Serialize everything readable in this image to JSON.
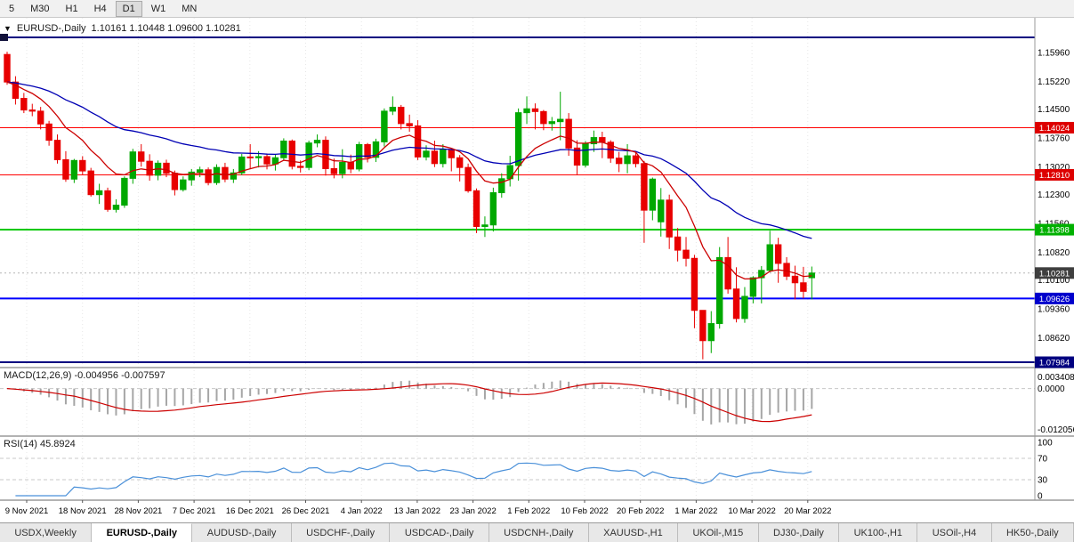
{
  "toolbar": {
    "timeframes": [
      "5",
      "M30",
      "H1",
      "H4",
      "D1",
      "W1",
      "MN"
    ],
    "active": "D1"
  },
  "header": {
    "collapse_icon": "▼",
    "symbol_period": "EURUSD-,Daily",
    "ohlc": "1.10161 1.10448 1.09600 1.10281"
  },
  "price_axis": {
    "labels": [
      "1.15960",
      "1.15220",
      "1.14500",
      "1.13760",
      "1.13020",
      "1.12300",
      "1.11560",
      "1.10820",
      "1.10100",
      "1.09360",
      "1.08620"
    ],
    "badges": [
      {
        "label": "1.14024",
        "color": "#dd0000"
      },
      {
        "label": "1.12810",
        "color": "#dd0000"
      },
      {
        "label": "1.11398",
        "color": "#00b000"
      },
      {
        "label": "1.10281",
        "color": "#3f3f3f"
      },
      {
        "label": "1.09626",
        "color": "#0000cc"
      },
      {
        "label": "1.07984",
        "color": "#000080"
      }
    ]
  },
  "hlines": [
    {
      "price": 1.1635,
      "color": "#000080",
      "width": 2
    },
    {
      "price": 1.14024,
      "color": "#ff0000",
      "width": 1
    },
    {
      "price": 1.1281,
      "color": "#ff0000",
      "width": 1
    },
    {
      "price": 1.11398,
      "color": "#00c800",
      "width": 2
    },
    {
      "price": 1.09626,
      "color": "#0000ff",
      "width": 2
    },
    {
      "price": 1.07984,
      "color": "#000080",
      "width": 2
    }
  ],
  "current_price": 1.10281,
  "macd": {
    "name": "MACD(12,26,9)",
    "values": "-0.004956 -0.007597",
    "axis_labels": [
      "0.003408",
      "0.0000",
      "-0.012056"
    ],
    "fast": 12,
    "slow": 26,
    "signal": 9
  },
  "rsi": {
    "name": "RSI(14)",
    "value": "45.8924",
    "period": 14,
    "axis_labels": [
      "100",
      "70",
      "30",
      "0"
    ],
    "levels": [
      70,
      30
    ]
  },
  "x_axis": {
    "labels": [
      "9 Nov 2021",
      "18 Nov 2021",
      "28 Nov 2021",
      "7 Dec 2021",
      "16 Dec 2021",
      "26 Dec 2021",
      "4 Jan 2022",
      "13 Jan 2022",
      "23 Jan 2022",
      "1 Feb 2022",
      "10 Feb 2022",
      "20 Feb 2022",
      "1 Mar 2022",
      "10 Mar 2022",
      "20 Mar 2022"
    ]
  },
  "tabs": [
    {
      "label": "USDX,Weekly",
      "active": false
    },
    {
      "label": "EURUSD-,Daily",
      "active": true
    },
    {
      "label": "AUDUSD-,Daily",
      "active": false
    },
    {
      "label": "USDCHF-,Daily",
      "active": false
    },
    {
      "label": "USDCAD-,Daily",
      "active": false
    },
    {
      "label": "USDCNH-,Daily",
      "active": false
    },
    {
      "label": "XAUUSD-,H1",
      "active": false
    },
    {
      "label": "UKOil-,M15",
      "active": false
    },
    {
      "label": "DJ30-,Daily",
      "active": false
    },
    {
      "label": "UK100-,H1",
      "active": false
    },
    {
      "label": "USOil-,H4",
      "active": false
    },
    {
      "label": "HK50-,Daily",
      "active": false
    }
  ],
  "colors": {
    "bull": "#00a800",
    "bear": "#e80000",
    "ma_fast": "#cc0000",
    "ma_slow": "#0000b4",
    "macd_bar": "#a6a6a6",
    "macd_signal": "#cc0000",
    "rsi_line": "#4a90d9",
    "grid": "#e7e7e7",
    "axis_border": "#9a9a9a",
    "level_dash": "#c8c8c8"
  },
  "chart_data": {
    "type": "candlestick",
    "symbol": "EURUSD",
    "timeframe": "Daily",
    "ma_fast_period": 10,
    "ma_slow_period": 34,
    "price_range": [
      1.07847,
      1.16854
    ],
    "candles": [
      [
        1.1591,
        1.1598,
        1.1513,
        1.152
      ],
      [
        1.152,
        1.1535,
        1.1462,
        1.1478
      ],
      [
        1.1478,
        1.1492,
        1.144,
        1.1448
      ],
      [
        1.1448,
        1.1464,
        1.1432,
        1.1445
      ],
      [
        1.1445,
        1.1456,
        1.1398,
        1.1412
      ],
      [
        1.1412,
        1.142,
        1.1356,
        1.137
      ],
      [
        1.137,
        1.1385,
        1.131,
        1.132
      ],
      [
        1.132,
        1.1342,
        1.1263,
        1.127
      ],
      [
        1.127,
        1.1322,
        1.126,
        1.1318
      ],
      [
        1.1318,
        1.1329,
        1.1282,
        1.1291
      ],
      [
        1.1291,
        1.1299,
        1.1225,
        1.123
      ],
      [
        1.123,
        1.1258,
        1.1206,
        1.124
      ],
      [
        1.124,
        1.1248,
        1.1186,
        1.1192
      ],
      [
        1.1192,
        1.1218,
        1.1184,
        1.1203
      ],
      [
        1.1203,
        1.1277,
        1.1196,
        1.1272
      ],
      [
        1.1272,
        1.1348,
        1.1258,
        1.134
      ],
      [
        1.134,
        1.136,
        1.1302,
        1.1316
      ],
      [
        1.1316,
        1.1334,
        1.1266,
        1.128
      ],
      [
        1.128,
        1.1318,
        1.1267,
        1.1311
      ],
      [
        1.1311,
        1.132,
        1.1275,
        1.1285
      ],
      [
        1.1285,
        1.1292,
        1.1228,
        1.1243
      ],
      [
        1.1243,
        1.1277,
        1.1238,
        1.1268
      ],
      [
        1.1268,
        1.1296,
        1.1253,
        1.1288
      ],
      [
        1.1288,
        1.1302,
        1.1275,
        1.1294
      ],
      [
        1.1294,
        1.13,
        1.1254,
        1.1261
      ],
      [
        1.1261,
        1.1308,
        1.1255,
        1.13
      ],
      [
        1.13,
        1.1312,
        1.1262,
        1.127
      ],
      [
        1.127,
        1.1296,
        1.126,
        1.1286
      ],
      [
        1.1286,
        1.1335,
        1.128,
        1.1327
      ],
      [
        1.1327,
        1.136,
        1.1298,
        1.1325
      ],
      [
        1.1325,
        1.1342,
        1.13,
        1.1328
      ],
      [
        1.1328,
        1.1336,
        1.1295,
        1.1309
      ],
      [
        1.1309,
        1.1333,
        1.1292,
        1.1325
      ],
      [
        1.1325,
        1.1375,
        1.1318,
        1.1368
      ],
      [
        1.1368,
        1.1372,
        1.1295,
        1.1303
      ],
      [
        1.1303,
        1.1318,
        1.1287,
        1.13
      ],
      [
        1.13,
        1.1369,
        1.1293,
        1.1363
      ],
      [
        1.1363,
        1.1385,
        1.1352,
        1.137
      ],
      [
        1.137,
        1.138,
        1.1279,
        1.1297
      ],
      [
        1.1297,
        1.1323,
        1.1272,
        1.1284
      ],
      [
        1.1284,
        1.1347,
        1.1272,
        1.1313
      ],
      [
        1.1313,
        1.1333,
        1.1285,
        1.1296
      ],
      [
        1.1296,
        1.1366,
        1.129,
        1.1359
      ],
      [
        1.1359,
        1.1363,
        1.1313,
        1.1326
      ],
      [
        1.1326,
        1.1374,
        1.1314,
        1.1366
      ],
      [
        1.1366,
        1.1452,
        1.1354,
        1.1445
      ],
      [
        1.1445,
        1.1483,
        1.1435,
        1.1455
      ],
      [
        1.1455,
        1.1461,
        1.1398,
        1.1413
      ],
      [
        1.1413,
        1.1436,
        1.1392,
        1.1407
      ],
      [
        1.1407,
        1.1422,
        1.1319,
        1.1327
      ],
      [
        1.1327,
        1.1357,
        1.1318,
        1.1342
      ],
      [
        1.1342,
        1.1369,
        1.1301,
        1.131
      ],
      [
        1.131,
        1.136,
        1.13,
        1.1346
      ],
      [
        1.1346,
        1.135,
        1.129,
        1.1325
      ],
      [
        1.1325,
        1.1332,
        1.1264,
        1.13
      ],
      [
        1.13,
        1.131,
        1.1235,
        1.124
      ],
      [
        1.124,
        1.1246,
        1.1131,
        1.1148
      ],
      [
        1.1148,
        1.1174,
        1.1121,
        1.1152
      ],
      [
        1.1152,
        1.1248,
        1.1135,
        1.1235
      ],
      [
        1.1235,
        1.1285,
        1.1222,
        1.1271
      ],
      [
        1.1271,
        1.133,
        1.1251,
        1.1305
      ],
      [
        1.1305,
        1.1452,
        1.1266,
        1.1441
      ],
      [
        1.1441,
        1.1483,
        1.1412,
        1.1451
      ],
      [
        1.1451,
        1.1465,
        1.1398,
        1.1444
      ],
      [
        1.1444,
        1.1448,
        1.1396,
        1.1413
      ],
      [
        1.1413,
        1.143,
        1.1395,
        1.1418
      ],
      [
        1.1418,
        1.1495,
        1.137,
        1.1424
      ],
      [
        1.1424,
        1.144,
        1.133,
        1.135
      ],
      [
        1.135,
        1.137,
        1.128,
        1.1306
      ],
      [
        1.1306,
        1.1368,
        1.13,
        1.1361
      ],
      [
        1.1361,
        1.1395,
        1.134,
        1.1377
      ],
      [
        1.1377,
        1.1392,
        1.1324,
        1.1365
      ],
      [
        1.1365,
        1.137,
        1.1312,
        1.1324
      ],
      [
        1.1324,
        1.134,
        1.1288,
        1.131
      ],
      [
        1.131,
        1.136,
        1.1285,
        1.133
      ],
      [
        1.133,
        1.1342,
        1.13,
        1.131
      ],
      [
        1.131,
        1.1317,
        1.1106,
        1.119
      ],
      [
        1.119,
        1.1274,
        1.1164,
        1.127
      ],
      [
        1.116,
        1.1247,
        1.1122,
        1.1216
      ],
      [
        1.1216,
        1.123,
        1.109,
        1.1121
      ],
      [
        1.1121,
        1.1144,
        1.1058,
        1.1087
      ],
      [
        1.1087,
        1.1121,
        1.1045,
        1.1066
      ],
      [
        1.1066,
        1.1075,
        1.0886,
        1.0932
      ],
      [
        1.0932,
        1.0932,
        1.0806,
        1.0854
      ],
      [
        1.0854,
        1.093,
        1.0822,
        1.0898
      ],
      [
        1.0898,
        1.1095,
        1.0885,
        1.1068
      ],
      [
        1.1068,
        1.1121,
        1.0975,
        1.0987
      ],
      [
        1.0987,
        1.1043,
        1.0901,
        1.0911
      ],
      [
        1.0911,
        1.0992,
        1.09,
        1.0968
      ],
      [
        1.0968,
        1.102,
        1.095,
        1.1016
      ],
      [
        1.1016,
        1.1046,
        1.095,
        1.1035
      ],
      [
        1.1035,
        1.1137,
        1.103,
        1.1101
      ],
      [
        1.1101,
        1.1119,
        1.1003,
        1.1053
      ],
      [
        1.1053,
        1.1069,
        1.101,
        1.102
      ],
      [
        1.102,
        1.1047,
        1.096,
        1.1003
      ],
      [
        1.1003,
        1.1044,
        1.0963,
        1.0981
      ],
      [
        1.10161,
        1.10448,
        1.096,
        1.10281
      ]
    ]
  }
}
